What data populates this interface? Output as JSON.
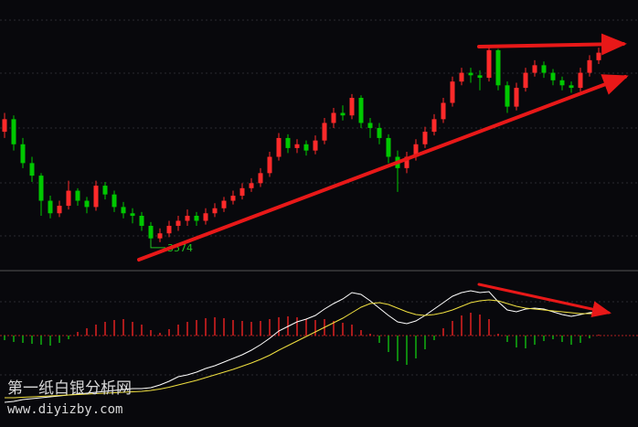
{
  "chart_data": [
    {
      "type": "candlestick",
      "ylim": [
        3555,
        3770
      ],
      "up_color": "#ff2a2a",
      "down_color": "#00c800",
      "low_label": "3574",
      "open": [
        3665,
        3675,
        3655,
        3640,
        3630,
        3610,
        3600,
        3606,
        3618,
        3610,
        3605,
        3622,
        3615,
        3605,
        3600,
        3598,
        3590,
        3580,
        3584,
        3590,
        3594,
        3598,
        3594,
        3600,
        3604,
        3610,
        3614,
        3620,
        3624,
        3632,
        3645,
        3660,
        3652,
        3655,
        3650,
        3658,
        3672,
        3680,
        3678,
        3692,
        3672,
        3668,
        3660,
        3645,
        3636,
        3645,
        3655,
        3665,
        3675,
        3688,
        3705,
        3712,
        3710,
        3708,
        3730,
        3702,
        3685,
        3700,
        3712,
        3718,
        3712,
        3706,
        3702,
        3700,
        3712,
        3722
      ],
      "high": [
        3680,
        3678,
        3660,
        3645,
        3632,
        3614,
        3610,
        3626,
        3620,
        3613,
        3626,
        3625,
        3618,
        3609,
        3604,
        3601,
        3593,
        3588,
        3594,
        3598,
        3603,
        3601,
        3604,
        3608,
        3613,
        3618,
        3624,
        3628,
        3636,
        3649,
        3664,
        3663,
        3659,
        3658,
        3662,
        3676,
        3684,
        3686,
        3695,
        3694,
        3676,
        3672,
        3663,
        3650,
        3649,
        3659,
        3669,
        3679,
        3692,
        3709,
        3716,
        3716,
        3714,
        3733,
        3731,
        3705,
        3704,
        3716,
        3722,
        3721,
        3715,
        3709,
        3705,
        3716,
        3726,
        3732
      ],
      "low": [
        3660,
        3650,
        3636,
        3625,
        3598,
        3596,
        3597,
        3603,
        3606,
        3600,
        3602,
        3611,
        3601,
        3596,
        3592,
        3586,
        3574,
        3577,
        3581,
        3586,
        3590,
        3590,
        3591,
        3597,
        3601,
        3607,
        3611,
        3617,
        3621,
        3629,
        3642,
        3648,
        3648,
        3646,
        3647,
        3655,
        3668,
        3674,
        3675,
        3668,
        3660,
        3655,
        3640,
        3617,
        3632,
        3642,
        3652,
        3662,
        3672,
        3685,
        3702,
        3704,
        3698,
        3705,
        3698,
        3680,
        3682,
        3697,
        3709,
        3708,
        3702,
        3698,
        3696,
        3697,
        3709,
        3719
      ],
      "close": [
        3675,
        3655,
        3640,
        3630,
        3610,
        3600,
        3606,
        3618,
        3610,
        3605,
        3622,
        3615,
        3605,
        3600,
        3598,
        3590,
        3580,
        3584,
        3590,
        3594,
        3598,
        3594,
        3600,
        3604,
        3610,
        3614,
        3620,
        3624,
        3632,
        3645,
        3660,
        3652,
        3655,
        3650,
        3658,
        3672,
        3680,
        3678,
        3692,
        3672,
        3668,
        3660,
        3645,
        3636,
        3645,
        3655,
        3665,
        3675,
        3688,
        3705,
        3712,
        3710,
        3708,
        3730,
        3702,
        3685,
        3700,
        3712,
        3718,
        3712,
        3706,
        3702,
        3700,
        3712,
        3722,
        3728
      ]
    },
    {
      "type": "macd",
      "ylim": [
        -20,
        14
      ],
      "histogram": {
        "up_color": "#e02020",
        "down_color": "#10b010",
        "values": [
          -1.0,
          -1.4,
          -1.6,
          -1.8,
          -2.0,
          -2.2,
          -1.6,
          -0.8,
          0.8,
          1.6,
          2.4,
          3.0,
          3.4,
          3.6,
          3.0,
          2.4,
          1.2,
          0.6,
          1.4,
          2.4,
          3.0,
          3.4,
          3.8,
          4.0,
          3.8,
          3.4,
          3.2,
          3.0,
          3.2,
          3.6,
          4.0,
          4.2,
          4.0,
          3.6,
          3.4,
          3.6,
          3.2,
          2.8,
          2.4,
          1.2,
          0.4,
          -1.6,
          -3.6,
          -5.6,
          -6.4,
          -5.0,
          -3.0,
          -1.0,
          1.6,
          3.2,
          4.4,
          5.0,
          4.6,
          3.6,
          0.4,
          -1.4,
          -2.6,
          -2.8,
          -2.0,
          -1.2,
          -0.8,
          -1.4,
          -2.0,
          -1.6,
          -0.6,
          0.2
        ]
      },
      "series": [
        {
          "color": "#ffffff",
          "values": [
            -14.6,
            -14.4,
            -14.0,
            -13.8,
            -13.6,
            -13.4,
            -13.2,
            -13.0,
            -12.8,
            -12.6,
            -12.4,
            -12.2,
            -12.0,
            -11.8,
            -11.6,
            -11.6,
            -11.4,
            -10.8,
            -10.0,
            -9.0,
            -8.6,
            -8.0,
            -7.2,
            -6.6,
            -5.8,
            -5.0,
            -4.2,
            -3.2,
            -2.0,
            -0.6,
            1.0,
            2.0,
            3.0,
            3.6,
            4.4,
            5.8,
            7.0,
            8.0,
            9.4,
            9.0,
            7.6,
            6.0,
            4.4,
            3.0,
            2.6,
            3.2,
            4.4,
            5.8,
            7.2,
            8.6,
            9.4,
            9.8,
            9.4,
            9.6,
            7.4,
            5.6,
            5.2,
            5.8,
            6.0,
            5.8,
            5.2,
            4.6,
            4.2,
            4.6,
            5.0,
            5.2
          ]
        },
        {
          "color": "#f0e040",
          "values": [
            -13.6,
            -13.6,
            -13.5,
            -13.4,
            -13.3,
            -13.2,
            -13.1,
            -13.0,
            -12.9,
            -12.8,
            -12.7,
            -12.6,
            -12.5,
            -12.4,
            -12.3,
            -12.2,
            -12.0,
            -11.7,
            -11.3,
            -10.8,
            -10.3,
            -9.8,
            -9.2,
            -8.6,
            -8.0,
            -7.4,
            -6.7,
            -6.0,
            -5.2,
            -4.3,
            -3.2,
            -2.2,
            -1.2,
            -0.2,
            0.8,
            1.8,
            2.8,
            3.8,
            5.0,
            6.2,
            7.0,
            7.2,
            6.8,
            6.0,
            5.2,
            4.6,
            4.4,
            4.6,
            5.0,
            5.6,
            6.4,
            7.2,
            7.6,
            7.8,
            7.6,
            7.0,
            6.4,
            6.0,
            5.8,
            5.6,
            5.4,
            5.2,
            5.0,
            4.8,
            4.8,
            4.8
          ]
        }
      ]
    }
  ],
  "watermark": {
    "title": "第一纸白银分析网",
    "url": "www.diyizby.com"
  }
}
